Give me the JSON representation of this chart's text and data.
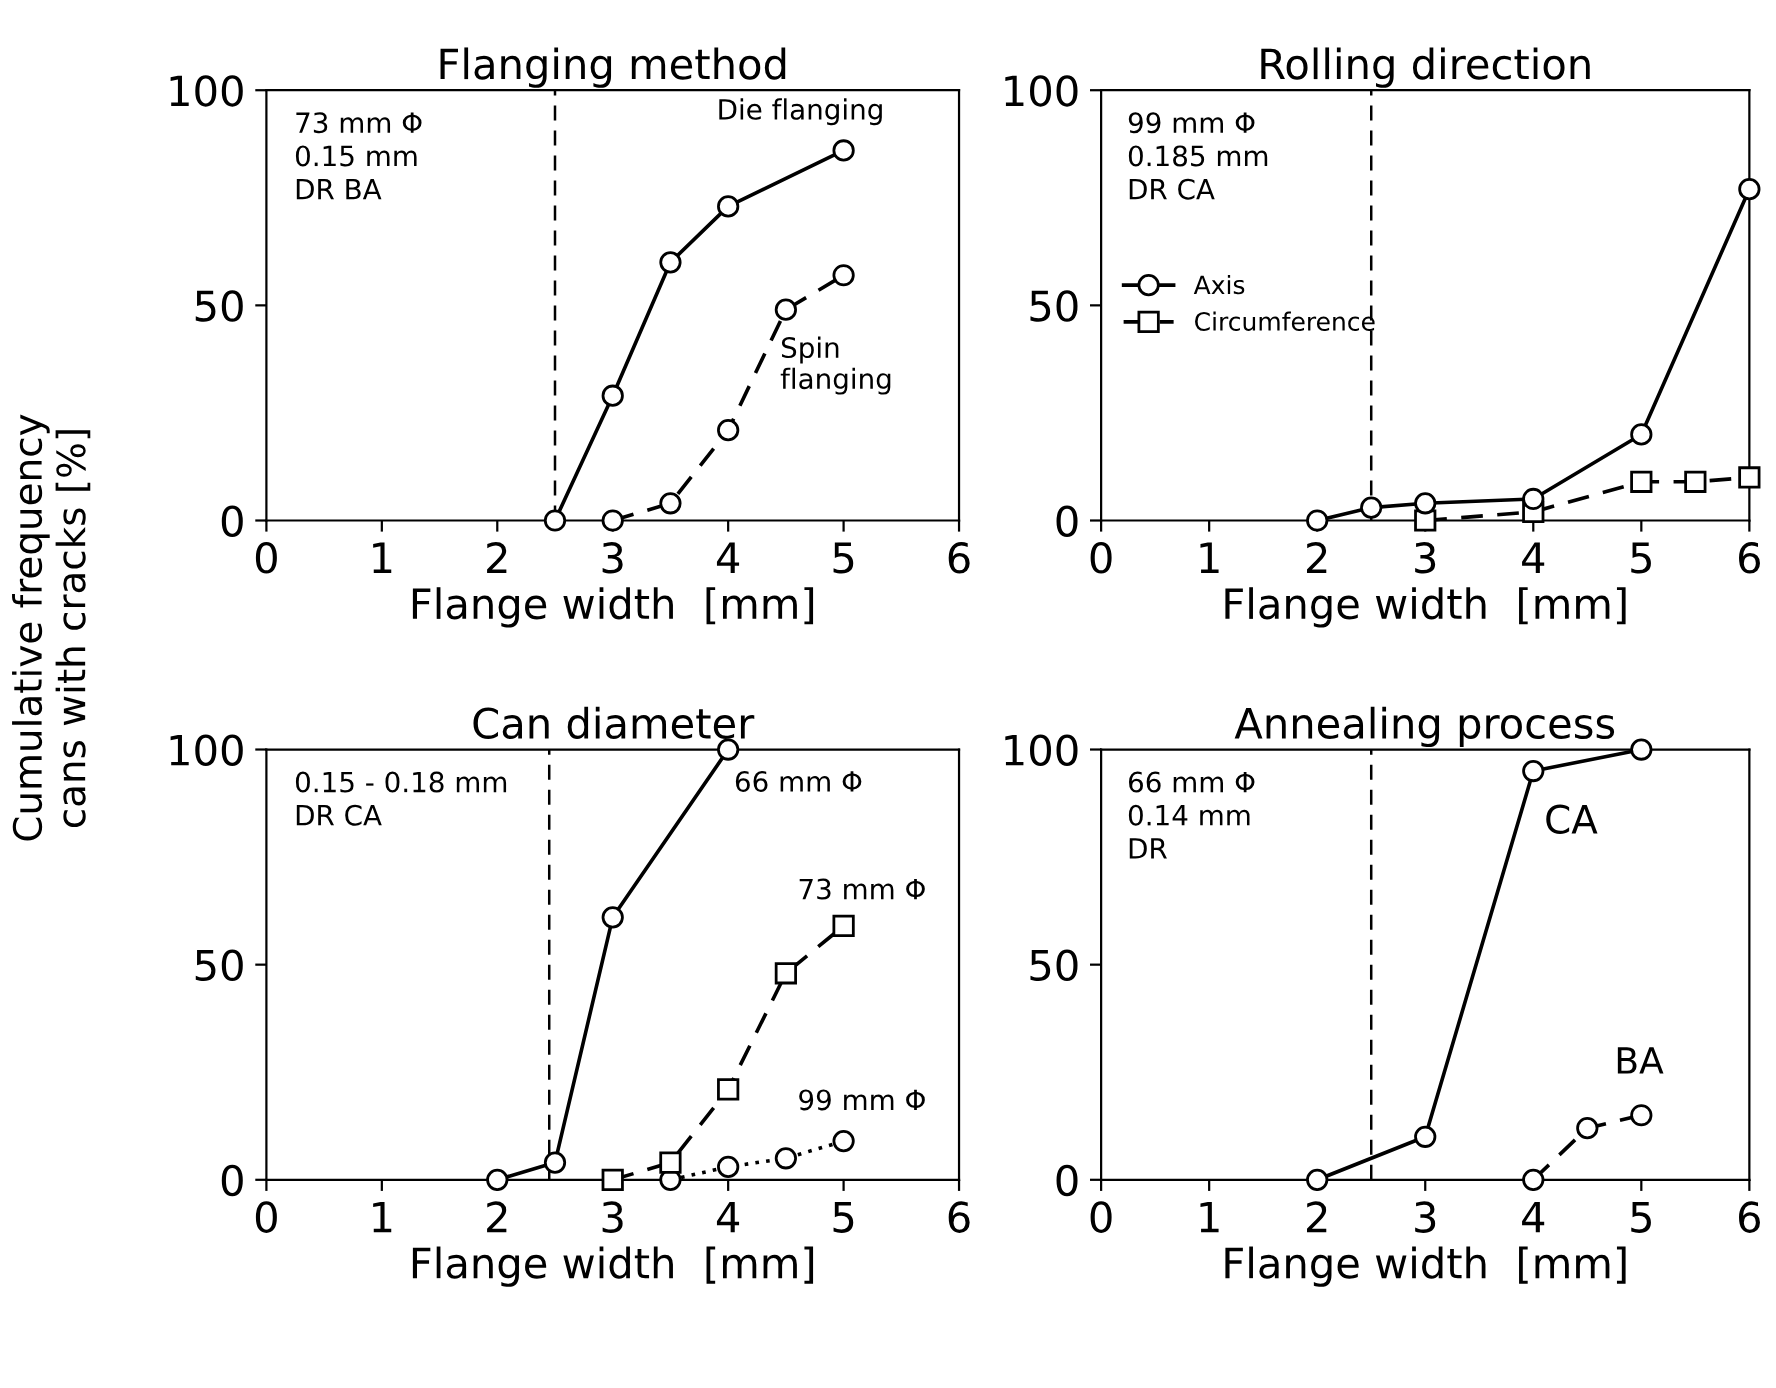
{
  "chart_data": [
    {
      "type": "line",
      "title": "Flanging method",
      "xlabel": "Flange width  [mm]",
      "ylabel": "Cumulative frequency\ncans with cracks [%]",
      "xlim": [
        0,
        6
      ],
      "ylim": [
        0,
        100
      ],
      "xticks": [
        0,
        1,
        2,
        3,
        4,
        5,
        6
      ],
      "yticks": [
        0,
        50,
        100
      ],
      "grid": false,
      "legend": false,
      "annotations": [
        "73 mm Φ\n0.15 mm\nDR BA"
      ],
      "ref_lines": [
        {
          "axis": "x",
          "value": 2.5,
          "color": "#000000",
          "line_style": "dashed"
        }
      ],
      "series": [
        {
          "name": "Die flanging",
          "color": "#000000",
          "marker": "circle",
          "line_style": "solid",
          "x": [
            2.5,
            3,
            3.5,
            4,
            5
          ],
          "values": [
            0,
            29,
            60,
            73,
            86
          ]
        },
        {
          "name": "Spin\nflanging",
          "color": "#000000",
          "marker": "circle",
          "line_style": "dashed",
          "x": [
            3,
            3.5,
            4,
            4.5,
            5
          ],
          "values": [
            0,
            4,
            21,
            49,
            57
          ]
        }
      ]
    },
    {
      "type": "line",
      "title": "Rolling direction",
      "xlabel": "Flange width  [mm]",
      "xlim": [
        0,
        6
      ],
      "ylim": [
        0,
        100
      ],
      "xticks": [
        0,
        1,
        2,
        3,
        4,
        5,
        6
      ],
      "yticks": [
        0,
        50,
        100
      ],
      "grid": false,
      "legend": "center left",
      "annotations": [
        "99 mm Φ\n0.185 mm\nDR CA"
      ],
      "ref_lines": [
        {
          "axis": "x",
          "value": 2.5,
          "color": "#000000",
          "line_style": "dashed"
        }
      ],
      "series": [
        {
          "name": "Axis",
          "color": "#000000",
          "marker": "circle",
          "line_style": "solid",
          "x": [
            2,
            2.5,
            3,
            4,
            5,
            6
          ],
          "values": [
            0,
            3,
            4,
            5,
            20,
            77
          ]
        },
        {
          "name": "Circumference",
          "color": "#000000",
          "marker": "square",
          "line_style": "dashed",
          "x": [
            3,
            4,
            5,
            5.5,
            6
          ],
          "values": [
            0,
            2,
            9,
            9,
            10
          ]
        }
      ]
    },
    {
      "type": "line",
      "title": "Can diameter",
      "xlabel": "Flange width  [mm]",
      "xlim": [
        0,
        6
      ],
      "ylim": [
        0,
        100
      ],
      "xticks": [
        0,
        1,
        2,
        3,
        4,
        5,
        6
      ],
      "yticks": [
        0,
        50,
        100
      ],
      "grid": false,
      "legend": false,
      "annotations": [
        "0.15 - 0.18 mm\nDR CA"
      ],
      "ref_lines": [
        {
          "axis": "x",
          "value": 2.45,
          "color": "#000000",
          "line_style": "dashed"
        }
      ],
      "series": [
        {
          "name": "66 mm Φ",
          "color": "#000000",
          "marker": "circle",
          "line_style": "solid",
          "x": [
            2,
            2.5,
            3,
            4
          ],
          "values": [
            0,
            4,
            61,
            100
          ]
        },
        {
          "name": "73 mm Φ",
          "color": "#000000",
          "marker": "square",
          "line_style": "dashed",
          "x": [
            3,
            3.5,
            4,
            4.5,
            5
          ],
          "values": [
            0,
            4,
            21,
            48,
            59
          ]
        },
        {
          "name": "99 mm Φ",
          "color": "#000000",
          "marker": "circle",
          "line_style": "dotted",
          "x": [
            3.5,
            4,
            4.5,
            5
          ],
          "values": [
            0,
            3,
            5,
            9
          ]
        }
      ]
    },
    {
      "type": "line",
      "title": "Annealing process",
      "xlabel": "Flange width  [mm]",
      "xlim": [
        0,
        6
      ],
      "ylim": [
        0,
        100
      ],
      "xticks": [
        0,
        1,
        2,
        3,
        4,
        5,
        6
      ],
      "yticks": [
        0,
        50,
        100
      ],
      "grid": false,
      "legend": false,
      "annotations": [
        "66 mm Φ\n0.14 mm\nDR"
      ],
      "ref_lines": [
        {
          "axis": "x",
          "value": 2.5,
          "color": "#000000",
          "line_style": "dashed"
        }
      ],
      "series": [
        {
          "name": "CA",
          "color": "#000000",
          "marker": "circle",
          "line_style": "solid",
          "x": [
            2,
            3,
            4,
            5
          ],
          "values": [
            0,
            10,
            95,
            100
          ]
        },
        {
          "name": "BA",
          "color": "#000000",
          "marker": "circle",
          "line_style": "dashed",
          "x": [
            4,
            4.5,
            5
          ],
          "values": [
            0,
            12,
            15
          ]
        }
      ]
    }
  ]
}
